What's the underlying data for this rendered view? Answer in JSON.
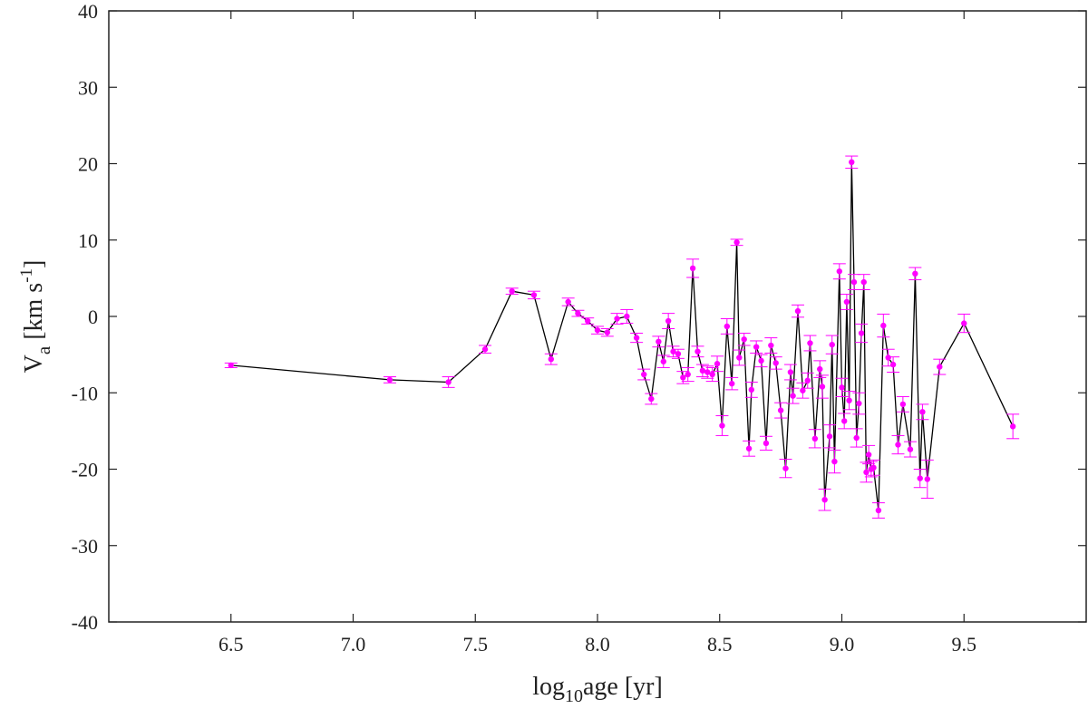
{
  "chart_data": {
    "type": "line",
    "title": "",
    "xlabel": {
      "base": "log",
      "sub": "10",
      "rest": "age [yr]"
    },
    "ylabel": {
      "base": "V",
      "sub": "a",
      "rest": " [km s",
      "sup": "-1",
      "end": "]"
    },
    "xlim": [
      6.0,
      10.0
    ],
    "ylim": [
      -40,
      40
    ],
    "xticks": [
      6.5,
      7.0,
      7.5,
      8.0,
      8.5,
      9.0,
      9.5
    ],
    "xtick_labels": [
      "6.5",
      "7.0",
      "7.5",
      "8.0",
      "8.5",
      "9.0",
      "9.5"
    ],
    "yticks": [
      -40,
      -30,
      -20,
      -10,
      0,
      10,
      20,
      30,
      40
    ],
    "ytick_labels": [
      "-40",
      "-30",
      "-20",
      "-10",
      "0",
      "10",
      "20",
      "30",
      "40"
    ],
    "grid": false,
    "line_color": "#000000",
    "marker_color": "#ff00ff",
    "series": [
      {
        "x": [
          6.5,
          7.15,
          7.39,
          7.54,
          7.65,
          7.74,
          7.81,
          7.88,
          7.92,
          7.96,
          8.0,
          8.04,
          8.08,
          8.12,
          8.16,
          8.19,
          8.22,
          8.25,
          8.27,
          8.29,
          8.31,
          8.33,
          8.35,
          8.37,
          8.39,
          8.41,
          8.43,
          8.45,
          8.47,
          8.49,
          8.51,
          8.53,
          8.55,
          8.57,
          8.58,
          8.6,
          8.62,
          8.63,
          8.65,
          8.67,
          8.69,
          8.71,
          8.73,
          8.75,
          8.77,
          8.79,
          8.8,
          8.82,
          8.84,
          8.86,
          8.87,
          8.89,
          8.91,
          8.92,
          8.93,
          8.95,
          8.96,
          8.97,
          8.99,
          9.0,
          9.01,
          9.02,
          9.03,
          9.04,
          9.05,
          9.06,
          9.07,
          9.08,
          9.09,
          9.1,
          9.11,
          9.12,
          9.13,
          9.15,
          9.17,
          9.19,
          9.21,
          9.23,
          9.25,
          9.28,
          9.3,
          9.32,
          9.33,
          9.35,
          9.4,
          9.5,
          9.7
        ],
        "y": [
          -6.4,
          -8.3,
          -8.6,
          -4.3,
          3.3,
          2.8,
          -5.6,
          1.9,
          0.4,
          -0.6,
          -1.8,
          -2.1,
          -0.3,
          0.0,
          -2.8,
          -7.6,
          -10.8,
          -3.3,
          -5.9,
          -0.6,
          -4.6,
          -4.9,
          -8.0,
          -7.6,
          6.3,
          -4.6,
          -7.1,
          -7.3,
          -7.6,
          -6.2,
          -14.3,
          -1.3,
          -8.8,
          9.7,
          -5.4,
          -3.0,
          -17.3,
          -9.6,
          -4.0,
          -5.8,
          -16.6,
          -3.8,
          -6.1,
          -12.3,
          -19.9,
          -7.3,
          -10.4,
          0.7,
          -9.7,
          -8.4,
          -3.5,
          -16.0,
          -6.9,
          -9.2,
          -24.0,
          -15.7,
          -3.7,
          -19.0,
          5.9,
          -9.3,
          -13.7,
          1.9,
          -11.0,
          20.2,
          4.5,
          -15.9,
          -11.4,
          -2.2,
          4.5,
          -20.4,
          -18.1,
          -20.0,
          -19.8,
          -25.4,
          -1.2,
          -5.4,
          -6.3,
          -16.8,
          -11.5,
          -17.4,
          5.6,
          -21.2,
          -12.5,
          -21.3,
          -6.6,
          -0.9,
          -14.4
        ],
        "err": [
          0.3,
          0.4,
          0.7,
          0.5,
          0.4,
          0.5,
          0.7,
          0.5,
          0.4,
          0.4,
          0.5,
          0.5,
          0.7,
          0.9,
          0.6,
          0.7,
          0.7,
          0.7,
          0.8,
          1.0,
          0.7,
          0.6,
          0.8,
          0.9,
          1.2,
          0.7,
          0.8,
          0.8,
          0.9,
          1.0,
          1.3,
          1.0,
          0.8,
          0.4,
          1.0,
          0.8,
          1.0,
          1.0,
          0.8,
          0.8,
          0.9,
          1.0,
          0.8,
          1.0,
          1.2,
          1.0,
          1.0,
          0.8,
          1.0,
          1.0,
          1.0,
          1.2,
          1.1,
          1.5,
          1.4,
          1.5,
          1.2,
          1.5,
          1.0,
          1.2,
          1.0,
          1.0,
          1.2,
          0.8,
          1.0,
          1.2,
          1.4,
          1.2,
          1.0,
          1.3,
          1.2,
          1.0,
          1.0,
          1.0,
          1.5,
          1.1,
          1.0,
          1.2,
          1.0,
          1.0,
          0.8,
          1.2,
          1.0,
          2.5,
          1.0,
          1.2,
          1.6
        ]
      }
    ]
  }
}
